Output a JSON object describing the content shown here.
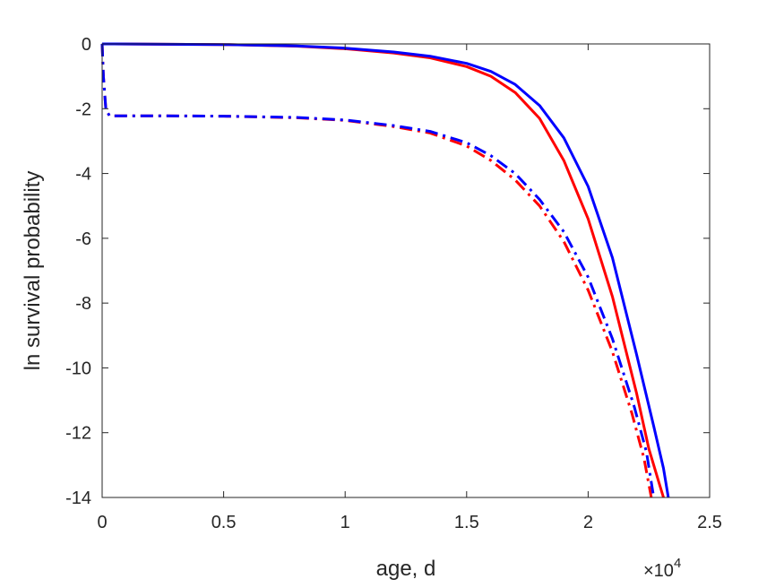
{
  "chart_data": {
    "type": "line",
    "title": "",
    "xlabel": "age, d",
    "ylabel": "ln survival probability",
    "x_exponent_label": "×10",
    "x_exponent_power": "4",
    "x_scale_factor": 10000,
    "xlim": [
      0,
      25000
    ],
    "ylim": [
      -14,
      0
    ],
    "x_ticks": [
      0,
      5000,
      10000,
      15000,
      20000,
      25000
    ],
    "x_tick_labels": [
      "0",
      "0.5",
      "1",
      "1.5",
      "2",
      "2.5"
    ],
    "y_ticks": [
      0,
      -2,
      -4,
      -6,
      -8,
      -10,
      -12,
      -14
    ],
    "y_tick_labels": [
      "0",
      "-2",
      "-4",
      "-6",
      "-8",
      "-10",
      "-12",
      "-14"
    ],
    "grid": false,
    "series": [
      {
        "color": "#ff0000",
        "style": "solid",
        "x": [
          0,
          2000,
          5000,
          8000,
          10000,
          12000,
          13500,
          15000,
          16000,
          17000,
          18000,
          19000,
          20000,
          21000,
          22000,
          22500,
          22900,
          23100
        ],
        "y": [
          0,
          -0.005,
          -0.02,
          -0.07,
          -0.15,
          -0.28,
          -0.43,
          -0.7,
          -1.0,
          -1.5,
          -2.3,
          -3.6,
          -5.4,
          -7.8,
          -10.8,
          -12.5,
          -13.5,
          -14
        ]
      },
      {
        "color": "#0000ff",
        "style": "solid",
        "x": [
          0,
          2000,
          5000,
          8000,
          10000,
          12000,
          13500,
          15000,
          16000,
          17000,
          18000,
          19000,
          20000,
          21000,
          22000,
          22700,
          23100,
          23300
        ],
        "y": [
          0,
          -0.005,
          -0.02,
          -0.06,
          -0.13,
          -0.25,
          -0.38,
          -0.6,
          -0.85,
          -1.25,
          -1.9,
          -2.9,
          -4.4,
          -6.6,
          -9.6,
          -11.8,
          -13.1,
          -14
        ]
      },
      {
        "color": "#ff0000",
        "style": "dashdot",
        "x": [
          0,
          50,
          150,
          300,
          2000,
          5000,
          8000,
          10000,
          12000,
          13500,
          15000,
          16000,
          17000,
          18000,
          19000,
          20000,
          21000,
          21800,
          22300,
          22600
        ],
        "y": [
          0,
          -1.0,
          -2.0,
          -2.22,
          -2.22,
          -2.23,
          -2.28,
          -2.36,
          -2.55,
          -2.75,
          -3.15,
          -3.6,
          -4.2,
          -5.0,
          -6.1,
          -7.6,
          -9.5,
          -11.4,
          -12.8,
          -14
        ]
      },
      {
        "color": "#0000ff",
        "style": "dashdot",
        "x": [
          0,
          50,
          150,
          300,
          2000,
          5000,
          8000,
          10000,
          12000,
          13500,
          15000,
          16000,
          17000,
          18000,
          19000,
          20000,
          21000,
          21900,
          22400,
          22700
        ],
        "y": [
          0,
          -1.0,
          -2.0,
          -2.22,
          -2.22,
          -2.23,
          -2.27,
          -2.35,
          -2.52,
          -2.7,
          -3.05,
          -3.45,
          -4.0,
          -4.8,
          -5.8,
          -7.2,
          -9.1,
          -11.2,
          -12.6,
          -14
        ]
      }
    ]
  }
}
